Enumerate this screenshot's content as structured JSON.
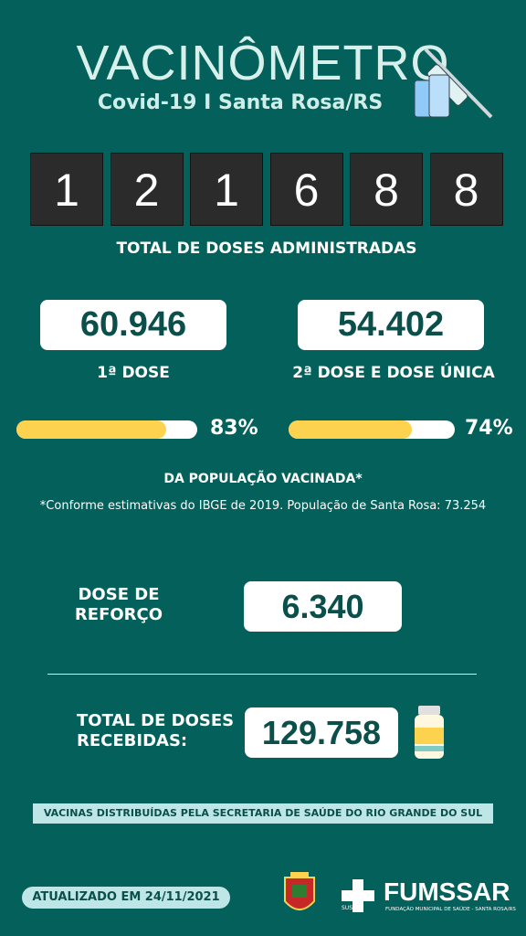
{
  "header": {
    "title": "VACINÔMETRO",
    "subtitle": "Covid-19 I Santa Rosa/RS"
  },
  "counter": {
    "digits": [
      "1",
      "2",
      "1",
      "6",
      "8",
      "8"
    ],
    "label": "TOTAL DE DOSES ADMINISTRADAS"
  },
  "doses": [
    {
      "value": "60.946",
      "label": "1ª DOSE",
      "percent": {
        "value": 83,
        "label": "83%"
      }
    },
    {
      "value": "54.402",
      "label": "2ª DOSE E DOSE ÚNICA",
      "percent": {
        "value": 74,
        "label": "74%"
      }
    }
  ],
  "population_note": "DA POPULAÇÃO VACINADA*",
  "footnote": "*Conforme estimativas do IBGE de 2019. População de Santa Rosa: 73.254",
  "booster": {
    "label": [
      "DOSE DE",
      "REFORÇO"
    ],
    "value": "6.340"
  },
  "received": {
    "label": [
      "TOTAL DE DOSES",
      "RECEBIDAS:"
    ],
    "value": "129.758"
  },
  "banner": "VACINAS DISTRIBUÍDAS PELA SECRETARIA DE SAÚDE DO RIO GRANDE DO SUL",
  "updated": "ATUALIZADO EM 24/11/2021",
  "logo": {
    "name": "FUMSSAR",
    "subtitle": "FUNDAÇÃO MUNICIPAL DE SAÚDE - SANTA ROSA/RS",
    "sus": "SUS"
  }
}
